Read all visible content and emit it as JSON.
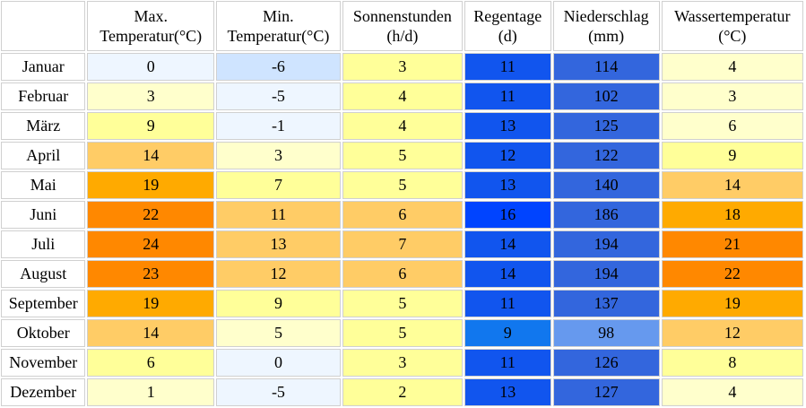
{
  "headers": [
    "",
    "Max. Temperatur(°C)",
    "Min. Temperatur(°C)",
    "Sonnenstunden (h/d)",
    "Regentage (d)",
    "Niederschlag (mm)",
    "Wassertemperatur (°C)"
  ],
  "header_lines": [
    [
      "",
      ""
    ],
    [
      "Max.",
      "Temperatur(°C)"
    ],
    [
      "Min.",
      "Temperatur(°C)"
    ],
    [
      "Sonnenstunden",
      "(h/d)"
    ],
    [
      "Regentage",
      "(d)"
    ],
    [
      "Niederschlag",
      "(mm)"
    ],
    [
      "Wassertemperatur",
      "(°C)"
    ]
  ],
  "rows": [
    {
      "month": "Januar",
      "values": [
        "0",
        "-6",
        "3",
        "11",
        "114",
        "4"
      ],
      "colors": [
        "#eef6ff",
        "#cfe4ff",
        "#ffff99",
        "#1155ee",
        "#3366dd",
        "#ffffcc"
      ]
    },
    {
      "month": "Februar",
      "values": [
        "3",
        "-5",
        "4",
        "11",
        "102",
        "3"
      ],
      "colors": [
        "#ffffcc",
        "#eef6ff",
        "#ffff99",
        "#1155ee",
        "#3366dd",
        "#ffffcc"
      ]
    },
    {
      "month": "März",
      "values": [
        "9",
        "-1",
        "4",
        "13",
        "125",
        "6"
      ],
      "colors": [
        "#ffff99",
        "#eef6ff",
        "#ffff99",
        "#1155ee",
        "#3366dd",
        "#ffffcc"
      ]
    },
    {
      "month": "April",
      "values": [
        "14",
        "3",
        "5",
        "12",
        "122",
        "9"
      ],
      "colors": [
        "#ffcc66",
        "#ffffcc",
        "#ffff99",
        "#1155ee",
        "#3366dd",
        "#ffff99"
      ]
    },
    {
      "month": "Mai",
      "values": [
        "19",
        "7",
        "5",
        "13",
        "140",
        "14"
      ],
      "colors": [
        "#ffaa00",
        "#ffff99",
        "#ffff99",
        "#1155ee",
        "#3366dd",
        "#ffcc66"
      ]
    },
    {
      "month": "Juni",
      "values": [
        "22",
        "11",
        "6",
        "16",
        "186",
        "18"
      ],
      "colors": [
        "#ff8800",
        "#ffcc66",
        "#ffcc66",
        "#0044ff",
        "#3366dd",
        "#ffaa00"
      ]
    },
    {
      "month": "Juli",
      "values": [
        "24",
        "13",
        "7",
        "14",
        "194",
        "21"
      ],
      "colors": [
        "#ff8800",
        "#ffcc66",
        "#ffcc66",
        "#1155ee",
        "#3366dd",
        "#ff8800"
      ]
    },
    {
      "month": "August",
      "values": [
        "23",
        "12",
        "6",
        "14",
        "194",
        "22"
      ],
      "colors": [
        "#ff8800",
        "#ffcc66",
        "#ffcc66",
        "#1155ee",
        "#3366dd",
        "#ff8800"
      ]
    },
    {
      "month": "September",
      "values": [
        "19",
        "9",
        "5",
        "11",
        "137",
        "19"
      ],
      "colors": [
        "#ffaa00",
        "#ffff99",
        "#ffff99",
        "#1155ee",
        "#3366dd",
        "#ffaa00"
      ]
    },
    {
      "month": "Oktober",
      "values": [
        "14",
        "5",
        "5",
        "9",
        "98",
        "12"
      ],
      "colors": [
        "#ffcc66",
        "#ffffcc",
        "#ffff99",
        "#1177ee",
        "#6699ee",
        "#ffcc66"
      ]
    },
    {
      "month": "November",
      "values": [
        "6",
        "0",
        "3",
        "11",
        "126",
        "8"
      ],
      "colors": [
        "#ffff99",
        "#eef6ff",
        "#ffff99",
        "#1155ee",
        "#3366dd",
        "#ffff99"
      ]
    },
    {
      "month": "Dezember",
      "values": [
        "1",
        "-5",
        "2",
        "13",
        "127",
        "4"
      ],
      "colors": [
        "#ffffcc",
        "#eef6ff",
        "#ffff99",
        "#1155ee",
        "#3366dd",
        "#ffffcc"
      ]
    }
  ]
}
